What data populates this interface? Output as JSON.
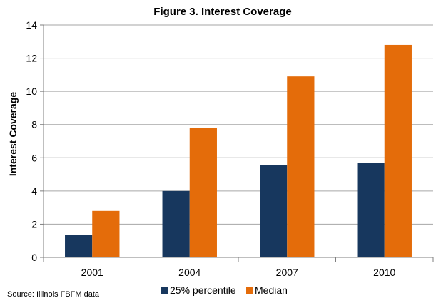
{
  "chart_data": {
    "type": "bar",
    "title": "Figure 3.  Interest Coverage",
    "xlabel": "",
    "ylabel": "Interest Coverage",
    "categories": [
      "2001",
      "2004",
      "2007",
      "2010"
    ],
    "series": [
      {
        "name": "25% percentile",
        "color": "#17375e",
        "values": [
          1.35,
          4.0,
          5.55,
          5.7
        ]
      },
      {
        "name": "Median",
        "color": "#e46c0a",
        "values": [
          2.8,
          7.8,
          10.9,
          12.8
        ]
      }
    ],
    "ylim": [
      0,
      14
    ],
    "yticks": [
      0,
      2,
      4,
      6,
      8,
      10,
      12,
      14
    ],
    "grid": true,
    "legend_position": "bottom",
    "source": "Source: Illinois FBFM data"
  }
}
